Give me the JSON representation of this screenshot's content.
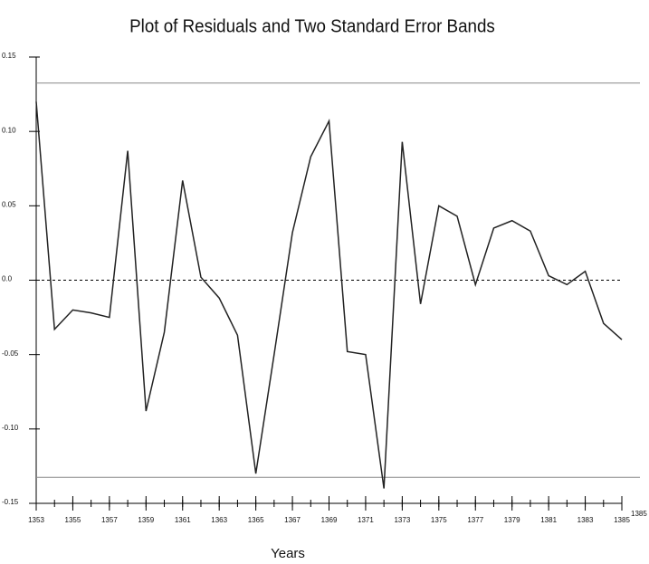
{
  "chart_data": {
    "type": "line",
    "title": "Plot of Residuals and Two Standard Error Bands",
    "x_label": "Years",
    "end_note": "1385",
    "x": [
      1353,
      1354,
      1355,
      1356,
      1357,
      1358,
      1359,
      1360,
      1361,
      1362,
      1363,
      1364,
      1365,
      1366,
      1367,
      1368,
      1369,
      1370,
      1371,
      1372,
      1373,
      1374,
      1375,
      1376,
      1377,
      1378,
      1379,
      1380,
      1381,
      1382,
      1383,
      1384,
      1385
    ],
    "series": [
      {
        "color": "#222222",
        "values": [
          0.12,
          -0.033,
          -0.02,
          -0.022,
          -0.025,
          0.087,
          -0.088,
          -0.035,
          0.067,
          0.002,
          -0.012,
          -0.037,
          -0.13,
          -0.05,
          0.032,
          0.083,
          0.107,
          -0.048,
          -0.05,
          -0.14,
          0.093,
          -0.016,
          0.05,
          0.043,
          -0.003,
          0.035,
          0.04,
          0.033,
          0.003,
          -0.003,
          0.006,
          -0.029,
          -0.04
        ]
      }
    ],
    "bands": [
      0.1325,
      -0.1325
    ],
    "xlim": [
      1353,
      1385
    ],
    "xticks": [
      1353,
      1355,
      1357,
      1359,
      1361,
      1363,
      1365,
      1367,
      1369,
      1371,
      1373,
      1375,
      1377,
      1379,
      1381,
      1383,
      1385
    ],
    "ylim": [
      -0.15,
      0.15
    ],
    "yticks": [
      0.15,
      {
        "value": 0.1,
        "label": "0.10"
      },
      0.05,
      {
        "value": 0,
        "label": "0.0"
      },
      -0.05,
      {
        "value": -0.1,
        "label": "-0.10"
      },
      -0.15
    ]
  }
}
